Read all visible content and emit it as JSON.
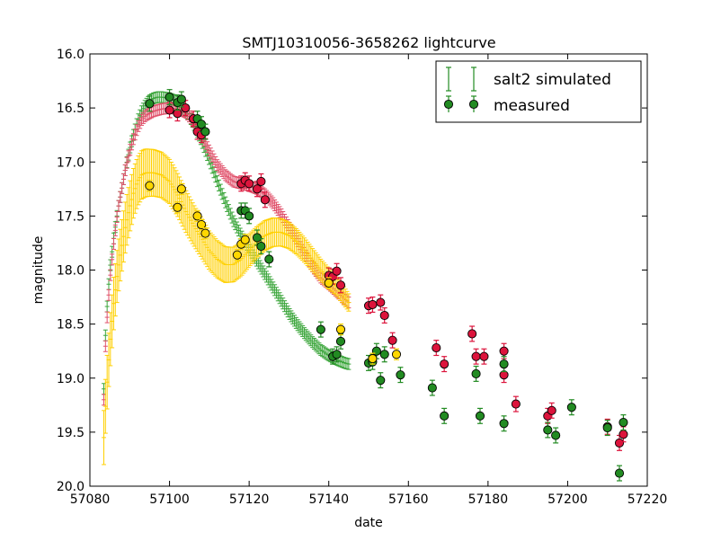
{
  "chart_data": {
    "type": "scatter",
    "title": "SMTJ10310056-3658262 lightcurve",
    "xlabel": "date",
    "ylabel": "magnitude",
    "xlim": [
      57080,
      57220
    ],
    "ylim": [
      20.0,
      16.0
    ],
    "y_inverted": true,
    "grid": false,
    "legend_placement": "top-right",
    "xticks": [
      "57080",
      "57100",
      "57120",
      "57140",
      "57160",
      "57180",
      "57200",
      "57220"
    ],
    "yticks": [
      "16.0",
      "16.5",
      "17.0",
      "17.5",
      "18.0",
      "18.5",
      "19.0",
      "19.5",
      "20.0"
    ],
    "colors": {
      "red": "#dc143c",
      "green": "#228b22",
      "gold": "#ffd700",
      "band_red": "#e0506a",
      "band_green": "#3aa53a",
      "band_gold": "#ffd000"
    },
    "legend": [
      {
        "label": "salt2 simulated",
        "style": "errorbar-band",
        "color": "#228b22"
      },
      {
        "label": "measured",
        "style": "marker",
        "color": "#228b22"
      }
    ],
    "series": [
      {
        "name": "simulated-green",
        "kind": "simulated",
        "color": "#3aa53a",
        "x_start": 57083.5,
        "x_end": 57145,
        "knots_x": [
          57083.5,
          57084,
          57085,
          57086,
          57087,
          57088,
          57089,
          57090,
          57091,
          57092,
          57093,
          57094,
          57095,
          57096,
          57097,
          57098,
          57100,
          57102,
          57104,
          57106,
          57108,
          57110,
          57112,
          57114,
          57116,
          57118,
          57120,
          57122,
          57124,
          57126,
          57128,
          57130,
          57132,
          57134,
          57136,
          57138,
          57140,
          57142,
          57144,
          57145
        ],
        "knots_y": [
          19.1,
          18.5,
          18.0,
          17.7,
          17.45,
          17.25,
          17.05,
          16.88,
          16.74,
          16.62,
          16.53,
          16.47,
          16.43,
          16.41,
          16.4,
          16.4,
          16.41,
          16.44,
          16.52,
          16.64,
          16.8,
          16.98,
          17.18,
          17.37,
          17.54,
          17.68,
          17.8,
          17.92,
          18.04,
          18.16,
          18.28,
          18.4,
          18.5,
          18.59,
          18.67,
          18.74,
          18.79,
          18.83,
          18.86,
          18.87
        ],
        "error": 0.05
      },
      {
        "name": "simulated-red",
        "kind": "simulated",
        "color": "#e0506a",
        "x_start": 57083.5,
        "x_end": 57145,
        "knots_x": [
          57083.5,
          57084,
          57085,
          57086,
          57087,
          57088,
          57089,
          57090,
          57091,
          57092,
          57093,
          57094,
          57095,
          57096,
          57098,
          57100,
          57102,
          57104,
          57106,
          57108,
          57110,
          57112,
          57114,
          57116,
          57118,
          57120,
          57122,
          57124,
          57126,
          57128,
          57130,
          57132,
          57134,
          57136,
          57138,
          57140,
          57142,
          57144,
          57145
        ],
        "knots_y": [
          19.2,
          18.6,
          18.1,
          17.75,
          17.45,
          17.25,
          17.05,
          16.9,
          16.78,
          16.68,
          16.61,
          16.57,
          16.55,
          16.53,
          16.51,
          16.5,
          16.51,
          16.54,
          16.62,
          16.75,
          16.9,
          17.03,
          17.12,
          17.18,
          17.2,
          17.22,
          17.25,
          17.3,
          17.38,
          17.48,
          17.6,
          17.72,
          17.85,
          17.97,
          18.07,
          18.13,
          18.2,
          18.27,
          18.3
        ],
        "error": 0.05
      },
      {
        "name": "simulated-gold",
        "kind": "simulated",
        "color": "#ffd000",
        "x_start": 57083.5,
        "x_end": 57145,
        "knots_x": [
          57083.5,
          57084,
          57085,
          57086,
          57087,
          57088,
          57089,
          57090,
          57091,
          57092,
          57093,
          57094,
          57096,
          57098,
          57100,
          57102,
          57104,
          57106,
          57108,
          57110,
          57112,
          57114,
          57116,
          57118,
          57120,
          57122,
          57124,
          57126,
          57128,
          57130,
          57132,
          57134,
          57136,
          57138,
          57140,
          57142,
          57144,
          57145
        ],
        "knots_y": [
          19.55,
          19.2,
          18.7,
          18.3,
          18.0,
          17.78,
          17.58,
          17.42,
          17.28,
          17.18,
          17.12,
          17.1,
          17.1,
          17.12,
          17.18,
          17.3,
          17.45,
          17.58,
          17.7,
          17.82,
          17.9,
          17.95,
          17.95,
          17.9,
          17.82,
          17.74,
          17.68,
          17.65,
          17.65,
          17.68,
          17.74,
          17.82,
          17.91,
          18.0,
          18.08,
          18.15,
          18.25,
          18.3
        ],
        "error_start": 0.25,
        "error_end": 0.08
      },
      {
        "name": "measured-red",
        "kind": "measured",
        "color": "#dc143c",
        "x": [
          57100,
          57102,
          57104,
          57106,
          57107,
          57108,
          57118,
          57119,
          57120,
          57122,
          57123,
          57124,
          57140,
          57141,
          57142,
          57143,
          57150,
          57151,
          57153,
          57154,
          57156,
          57167,
          57169,
          57176,
          57177,
          57179,
          57184,
          57184,
          57187,
          57195,
          57196,
          57210,
          57213,
          57214
        ],
        "y": [
          16.52,
          16.55,
          16.5,
          16.6,
          16.72,
          16.75,
          17.2,
          17.17,
          17.2,
          17.25,
          17.18,
          17.35,
          18.05,
          18.06,
          18.01,
          18.14,
          18.33,
          18.32,
          18.3,
          18.42,
          18.65,
          18.72,
          18.87,
          18.59,
          18.8,
          18.8,
          18.75,
          18.97,
          19.24,
          19.35,
          19.3,
          19.45,
          19.6,
          19.52
        ],
        "error": 0.07
      },
      {
        "name": "measured-green",
        "kind": "measured",
        "color": "#228b22",
        "x": [
          57095,
          57100,
          57102,
          57103,
          57107,
          57108,
          57109,
          57118,
          57119,
          57120,
          57122,
          57123,
          57125,
          57138,
          57141,
          57142,
          57143,
          57150,
          57151,
          57152,
          57153,
          57154,
          57158,
          57166,
          57169,
          57177,
          57178,
          57184,
          57184,
          57195,
          57197,
          57201,
          57210,
          57213,
          57214
        ],
        "y": [
          16.46,
          16.4,
          16.45,
          16.42,
          16.6,
          16.65,
          16.72,
          17.45,
          17.45,
          17.5,
          17.7,
          17.78,
          17.9,
          18.55,
          18.8,
          18.78,
          18.66,
          18.86,
          18.85,
          18.75,
          19.02,
          18.78,
          18.97,
          19.09,
          19.35,
          18.96,
          19.35,
          18.87,
          19.42,
          19.48,
          19.53,
          19.27,
          19.46,
          19.88,
          19.41
        ],
        "error": 0.07
      },
      {
        "name": "measured-gold",
        "kind": "measured",
        "color": "#ffd700",
        "x": [
          57095,
          57102,
          57103,
          57107,
          57108,
          57109,
          57117,
          57118,
          57119,
          57140,
          57143,
          57151,
          57157
        ],
        "y": [
          17.22,
          17.42,
          17.25,
          17.5,
          17.58,
          17.66,
          17.86,
          17.76,
          17.72,
          18.12,
          18.55,
          18.82,
          18.78
        ],
        "error": 0.05
      }
    ]
  }
}
